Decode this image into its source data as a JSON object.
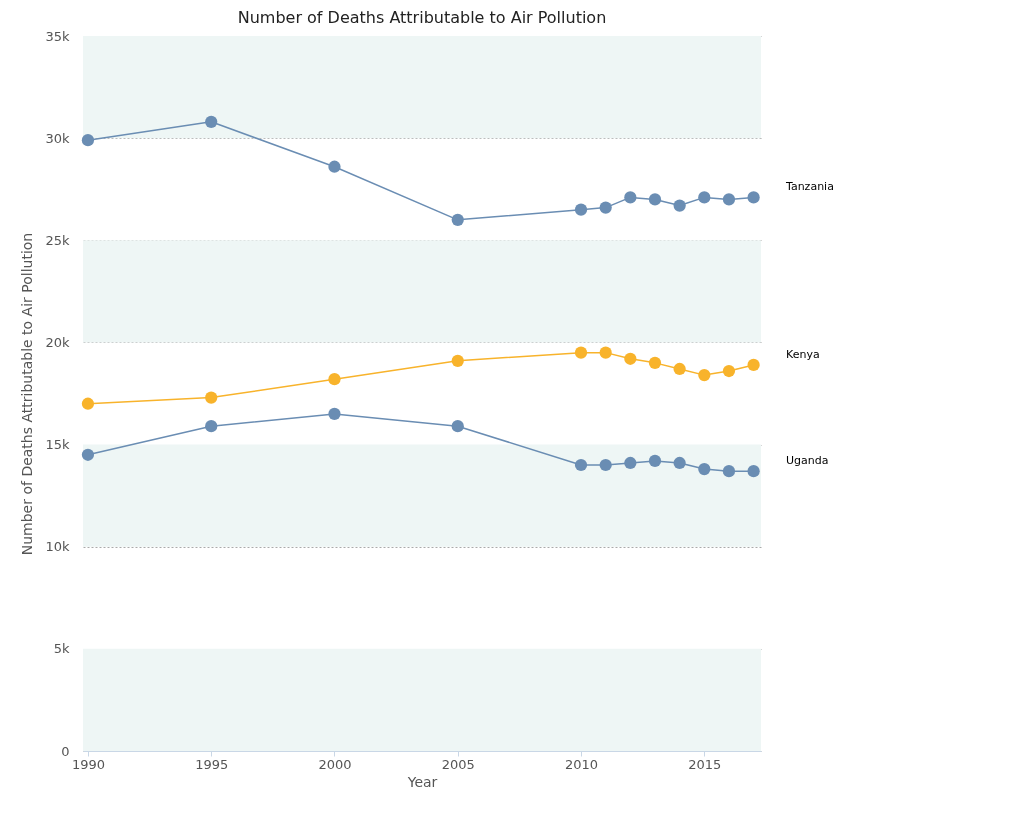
{
  "chart_data": {
    "type": "line",
    "title": "Number of Deaths Attributable to Air Pollution",
    "xlabel": "Year",
    "ylabel": "Number of Deaths Attributable to Air Pollution",
    "x": [
      1990,
      1995,
      2000,
      2005,
      2010,
      2011,
      2012,
      2013,
      2014,
      2015,
      2016,
      2017
    ],
    "series": [
      {
        "name": "Tanzania",
        "color": "#6a8db3",
        "values": [
          29900,
          30800,
          28600,
          26000,
          26500,
          26600,
          27100,
          27000,
          26700,
          27100,
          27000,
          27100
        ]
      },
      {
        "name": "Kenya",
        "color": "#f8b32b",
        "values": [
          17000,
          17300,
          18200,
          19100,
          19500,
          19500,
          19200,
          19000,
          18700,
          18400,
          18600,
          18900
        ]
      },
      {
        "name": "Uganda",
        "color": "#6a8db3",
        "values": [
          14500,
          15900,
          16500,
          15900,
          14000,
          14000,
          14100,
          14200,
          14100,
          13800,
          13700,
          13700
        ]
      }
    ],
    "xlim": [
      1989.8,
      2017.3
    ],
    "xticks": [
      1990,
      1995,
      2000,
      2005,
      2010,
      2015
    ],
    "ylim": [
      0,
      35000
    ],
    "yticks": [
      {
        "value": 0,
        "label": "0"
      },
      {
        "value": 5000,
        "label": "5k"
      },
      {
        "value": 10000,
        "label": "10k"
      },
      {
        "value": 15000,
        "label": "15k"
      },
      {
        "value": 20000,
        "label": "20k"
      },
      {
        "value": 25000,
        "label": "25k"
      },
      {
        "value": 30000,
        "label": "30k"
      },
      {
        "value": 35000,
        "label": "35k"
      }
    ],
    "bands": [
      {
        "axis": "y",
        "from": 0,
        "to": 5000,
        "color": "#eef6f5"
      },
      {
        "axis": "y",
        "from": 10000,
        "to": 15000,
        "color": "#eef6f5"
      },
      {
        "axis": "y",
        "from": 20000,
        "to": 25000,
        "color": "#eef6f5"
      },
      {
        "axis": "y",
        "from": 30000,
        "to": 35000,
        "color": "#eef6f5"
      }
    ],
    "grid": "y",
    "marker": "circle",
    "line_style": "solid"
  }
}
